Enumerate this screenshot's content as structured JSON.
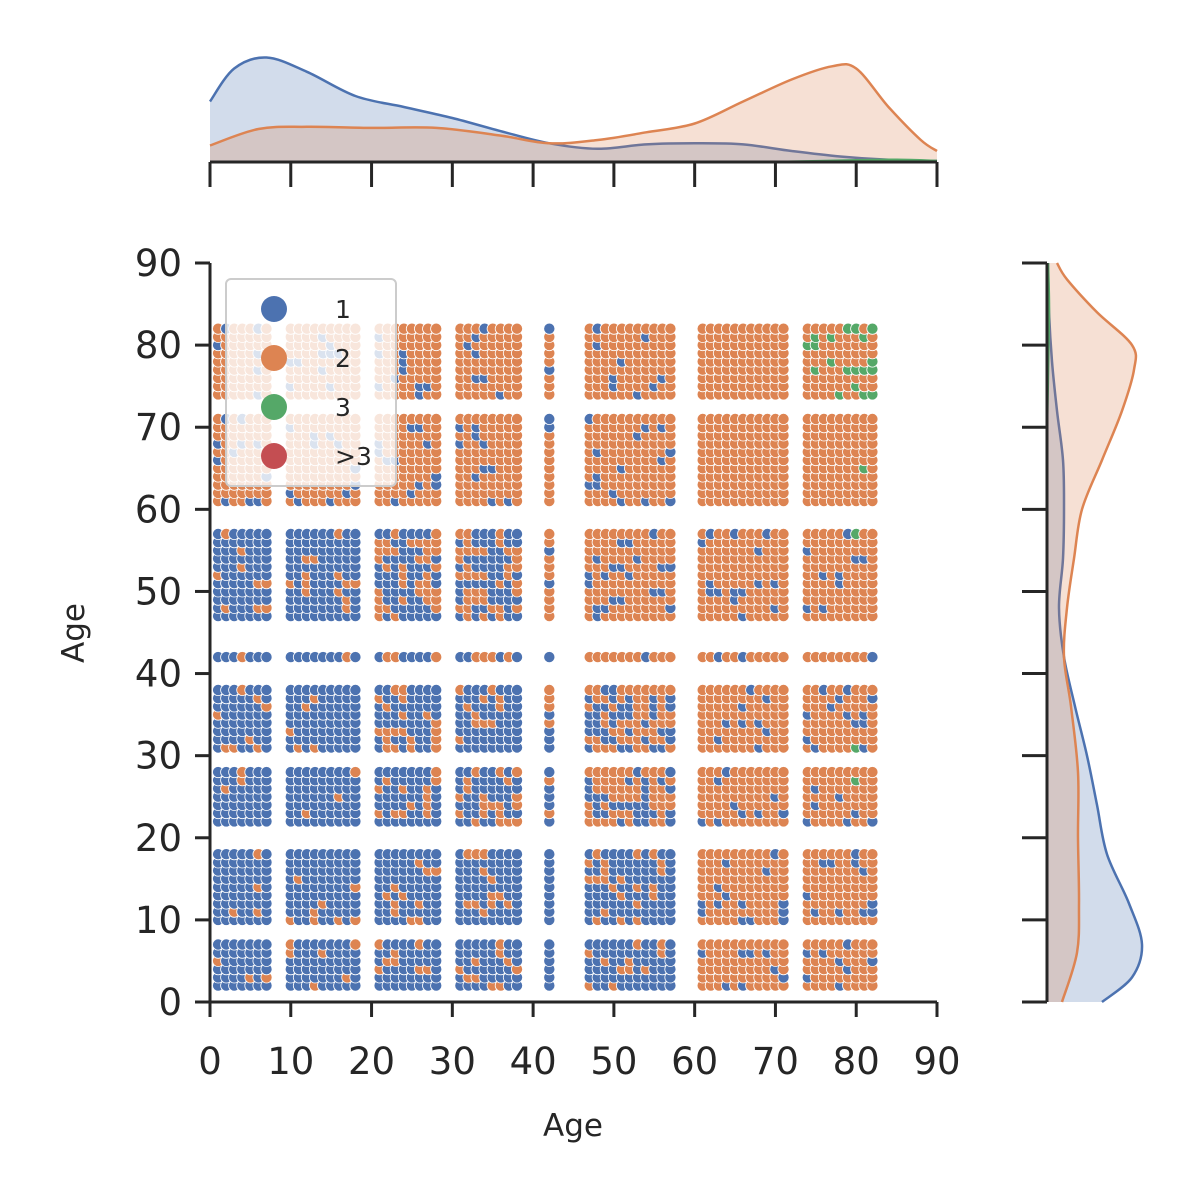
{
  "chart_data": {
    "type": "scatter",
    "subtype": "jointplot",
    "xlabel": "Age",
    "ylabel": "Age",
    "xlim": [
      0,
      90
    ],
    "ylim": [
      0,
      90
    ],
    "xticks": [
      "0",
      "10",
      "20",
      "30",
      "40",
      "50",
      "60",
      "70",
      "80",
      "90"
    ],
    "yticks": [
      "0",
      "10",
      "20",
      "30",
      "40",
      "50",
      "60",
      "70",
      "80",
      "90"
    ],
    "grid": false,
    "legend_position": "top-left",
    "x_groups": [
      {
        "from": 1,
        "to": 7
      },
      {
        "from": 10,
        "to": 18
      },
      {
        "from": 21,
        "to": 28
      },
      {
        "from": 31,
        "to": 38
      },
      {
        "from": 42,
        "to": 42
      },
      {
        "from": 47,
        "to": 57
      },
      {
        "from": 61,
        "to": 71
      },
      {
        "from": 74,
        "to": 82
      }
    ],
    "y_groups": [
      {
        "from": 2,
        "to": 7
      },
      {
        "from": 10,
        "to": 18
      },
      {
        "from": 22,
        "to": 28
      },
      {
        "from": 31,
        "to": 38
      },
      {
        "from": 42,
        "to": 42
      },
      {
        "from": 47,
        "to": 57
      },
      {
        "from": 61,
        "to": 71
      },
      {
        "from": 74,
        "to": 82
      }
    ],
    "series": [
      {
        "name": "1",
        "color": "#4c72b0",
        "marginal_x_density": [
          [
            0,
            0.55
          ],
          [
            3,
            0.85
          ],
          [
            7,
            0.95
          ],
          [
            12,
            0.82
          ],
          [
            18,
            0.6
          ],
          [
            24,
            0.5
          ],
          [
            30,
            0.4
          ],
          [
            36,
            0.28
          ],
          [
            42,
            0.17
          ],
          [
            48,
            0.12
          ],
          [
            54,
            0.16
          ],
          [
            60,
            0.17
          ],
          [
            66,
            0.16
          ],
          [
            72,
            0.1
          ],
          [
            78,
            0.05
          ],
          [
            84,
            0.02
          ],
          [
            90,
            0.01
          ]
        ],
        "marginal_y_density": [
          [
            0,
            0.55
          ],
          [
            3,
            0.85
          ],
          [
            7,
            0.95
          ],
          [
            12,
            0.82
          ],
          [
            18,
            0.6
          ],
          [
            24,
            0.5
          ],
          [
            30,
            0.4
          ],
          [
            36,
            0.28
          ],
          [
            42,
            0.17
          ],
          [
            48,
            0.12
          ],
          [
            54,
            0.16
          ],
          [
            60,
            0.17
          ],
          [
            66,
            0.16
          ],
          [
            72,
            0.1
          ],
          [
            78,
            0.05
          ],
          [
            84,
            0.02
          ],
          [
            90,
            0.01
          ]
        ]
      },
      {
        "name": "2",
        "color": "#dd8452",
        "marginal_x_density": [
          [
            0,
            0.15
          ],
          [
            6,
            0.3
          ],
          [
            12,
            0.32
          ],
          [
            20,
            0.31
          ],
          [
            28,
            0.31
          ],
          [
            36,
            0.24
          ],
          [
            42,
            0.17
          ],
          [
            48,
            0.2
          ],
          [
            54,
            0.27
          ],
          [
            60,
            0.35
          ],
          [
            66,
            0.55
          ],
          [
            72,
            0.75
          ],
          [
            77,
            0.87
          ],
          [
            80,
            0.85
          ],
          [
            84,
            0.5
          ],
          [
            88,
            0.2
          ],
          [
            90,
            0.1
          ]
        ],
        "marginal_y_density": [
          [
            0,
            0.15
          ],
          [
            6,
            0.3
          ],
          [
            12,
            0.32
          ],
          [
            20,
            0.31
          ],
          [
            28,
            0.31
          ],
          [
            36,
            0.24
          ],
          [
            42,
            0.17
          ],
          [
            48,
            0.2
          ],
          [
            54,
            0.27
          ],
          [
            60,
            0.35
          ],
          [
            66,
            0.55
          ],
          [
            72,
            0.75
          ],
          [
            77,
            0.87
          ],
          [
            80,
            0.85
          ],
          [
            84,
            0.5
          ],
          [
            88,
            0.2
          ],
          [
            90,
            0.1
          ]
        ]
      },
      {
        "name": "3",
        "color": "#55a868",
        "marginal_x_density": [
          [
            70,
            0
          ],
          [
            80,
            0.015
          ],
          [
            85,
            0.02
          ],
          [
            90,
            0.01
          ]
        ],
        "marginal_y_density": [
          [
            70,
            0
          ],
          [
            80,
            0.015
          ],
          [
            85,
            0.02
          ],
          [
            90,
            0.01
          ]
        ]
      },
      {
        "name": ">3",
        "color": "#c44e52",
        "marginal_x_density": [],
        "marginal_y_density": []
      }
    ]
  }
}
